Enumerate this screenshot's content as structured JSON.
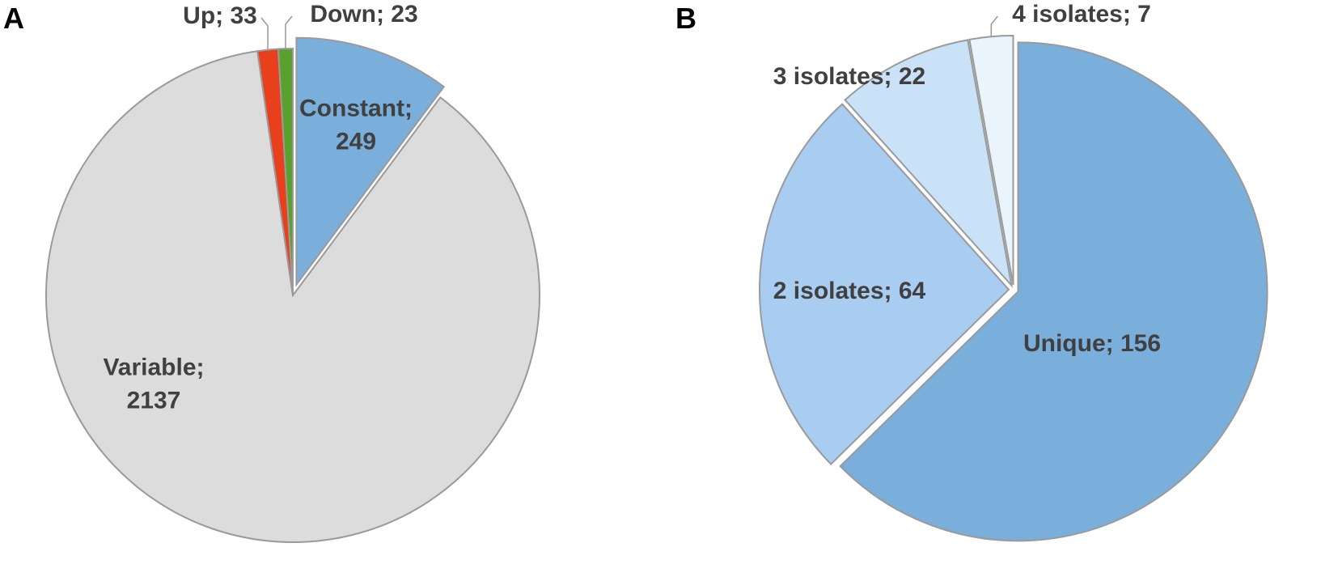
{
  "chart_data": [
    {
      "type": "pie",
      "panel_label": "A",
      "categories": [
        "Constant; 249",
        "Variable; 2137",
        "Up; 33",
        "Down; 23"
      ],
      "values": [
        249,
        2137,
        33,
        23
      ],
      "colors": [
        "#7aaedb",
        "#dddcdc",
        "#e8401c",
        "#5aa02c"
      ]
    },
    {
      "type": "pie",
      "panel_label": "B",
      "categories": [
        "Unique; 156",
        "2 isolates; 64",
        "3 isolates; 22",
        "4 isolates; 7"
      ],
      "values": [
        156,
        64,
        22,
        7
      ],
      "colors": [
        "#7aaedb",
        "#a9cdf0",
        "#c9e2f8",
        "#eaf4fc"
      ]
    }
  ]
}
